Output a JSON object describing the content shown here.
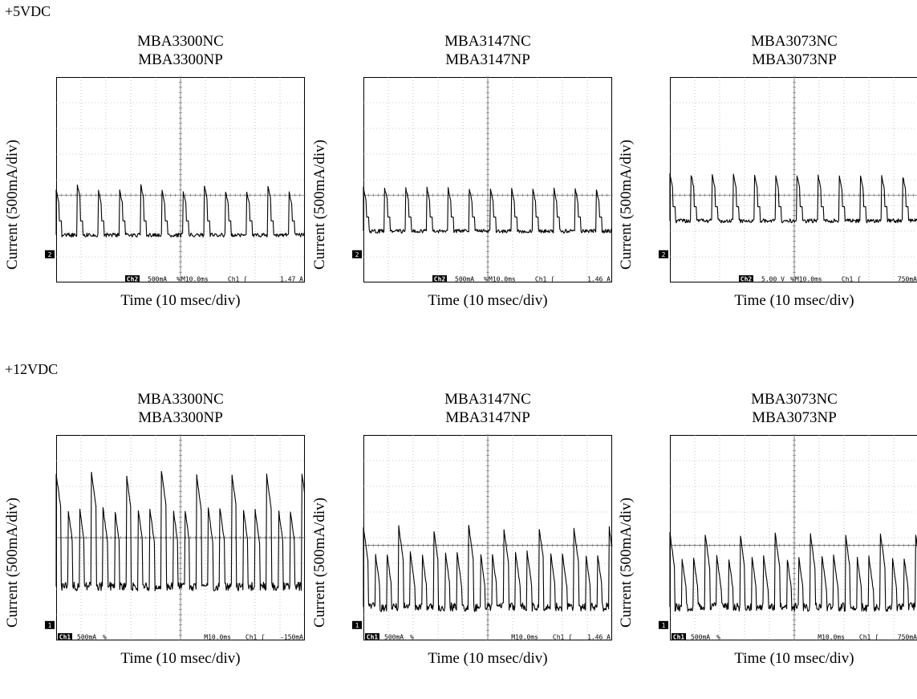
{
  "rows": [
    {
      "label": "+5VDC",
      "panels": [
        {
          "title1": "MBA3300NC",
          "title2": "MBA3300NP",
          "ylabel": "Current (500mA/div)",
          "xlabel": "Time (10 msec/div)",
          "ch": "Ch2",
          "status": [
            "500mA",
            "%",
            "M10.0ms",
            "Ch1 ʃ",
            "1.47 A"
          ],
          "marker": "2"
        },
        {
          "title1": "MBA3147NC",
          "title2": "MBA3147NP",
          "ylabel": "Current (500mA/div)",
          "xlabel": "Time (10 msec/div)",
          "ch": "Ch2",
          "status": [
            "500mA",
            "%",
            "M10.0ms",
            "Ch1 ʃ",
            "1.46 A"
          ],
          "marker": "2"
        },
        {
          "title1": "MBA3073NC",
          "title2": "MBA3073NP",
          "ylabel": "Current (500mA/div)",
          "xlabel": "Time (10 msec/div)",
          "ch": "Ch2",
          "status": [
            "5.00 V",
            "%",
            "M10.0ms",
            "Ch1 ʃ",
            "750mA"
          ],
          "marker": "2"
        }
      ]
    },
    {
      "label": "+12VDC",
      "panels": [
        {
          "title1": "MBA3300NC",
          "title2": "MBA3300NP",
          "ylabel": "Current (500mA/div)",
          "xlabel": "Time (10 msec/div)",
          "ch": "Ch1",
          "status": [
            "500mA",
            "%",
            "M10.0ms",
            "Ch1 ʃ",
            "-150mA"
          ],
          "marker": "1"
        },
        {
          "title1": "MBA3147NC",
          "title2": "MBA3147NP",
          "ylabel": "Current (500mA/div)",
          "xlabel": "Time (10 msec/div)",
          "ch": "Ch1",
          "status": [
            "500mA",
            "%",
            "M10.0ms",
            "Ch1 ʃ",
            "1.46 A"
          ],
          "marker": "1"
        },
        {
          "title1": "MBA3073NC",
          "title2": "MBA3073NP",
          "ylabel": "Current (500mA/div)",
          "xlabel": "Time (10 msec/div)",
          "ch": "Ch1",
          "status": [
            "500mA",
            "%",
            "M10.0ms",
            "Ch1 ʃ",
            "750mA"
          ],
          "marker": "1"
        }
      ]
    }
  ],
  "chart_data": [
    {
      "type": "line",
      "title": "MBA3300NC / MBA3300NP",
      "xlabel": "Time (10 msec/div)",
      "ylabel": "Current (500mA/div)",
      "x_divs": 10,
      "y_divs": 8,
      "baseline_div": 1.85,
      "period_ms": 8.5,
      "peaks": [
        {
          "t_ms": 7,
          "div": 3.6
        },
        {
          "t_ms": 15,
          "div": 3.8
        },
        {
          "t_ms": 25,
          "div": 3.6
        }
      ],
      "grid": true
    },
    {
      "type": "line",
      "title": "MBA3147NC / MBA3147NP",
      "xlabel": "Time (10 msec/div)",
      "ylabel": "Current (500mA/div)",
      "x_divs": 10,
      "y_divs": 8,
      "baseline_div": 2.0,
      "period_ms": 8.5,
      "peaks": [
        {
          "t_ms": 12,
          "div": 3.7
        },
        {
          "t_ms": 28,
          "div": 3.7
        }
      ],
      "grid": true
    },
    {
      "type": "line",
      "title": "MBA3073NC / MBA3073NP",
      "xlabel": "Time (10 msec/div)",
      "ylabel": "Current (500mA/div)",
      "x_divs": 10,
      "y_divs": 8,
      "baseline_div": 2.4,
      "period_ms": 8.5,
      "peaks": [
        {
          "t_ms": 9,
          "div": 4.2
        },
        {
          "t_ms": 29,
          "div": 4.2
        }
      ],
      "grid": true
    },
    {
      "type": "line",
      "title": "MBA3300NC / MBA3300NP",
      "xlabel": "Time (10 msec/div)",
      "ylabel": "Current (500mA/div)",
      "x_divs": 10,
      "y_divs": 8,
      "baseline_div": 2.1,
      "period_ms": 4.7,
      "peaks": [
        {
          "t_ms": 5,
          "div": 6.5
        },
        {
          "t_ms": 25,
          "div": 6.6
        }
      ],
      "grid": true
    },
    {
      "type": "line",
      "title": "MBA3147NC / MBA3147NP",
      "xlabel": "Time (10 msec/div)",
      "ylabel": "Current (500mA/div)",
      "x_divs": 10,
      "y_divs": 8,
      "baseline_div": 1.3,
      "period_ms": 4.7,
      "peaks": [
        {
          "t_ms": 6,
          "div": 4.4
        },
        {
          "t_ms": 30,
          "div": 4.5
        }
      ],
      "grid": true
    },
    {
      "type": "line",
      "title": "MBA3073NC / MBA3073NP",
      "xlabel": "Time (10 msec/div)",
      "ylabel": "Current (500mA/div)",
      "x_divs": 10,
      "y_divs": 8,
      "baseline_div": 1.3,
      "period_ms": 4.7,
      "peaks": [
        {
          "t_ms": 8,
          "div": 4.2
        },
        {
          "t_ms": 27,
          "div": 4.2
        }
      ],
      "grid": true
    }
  ]
}
